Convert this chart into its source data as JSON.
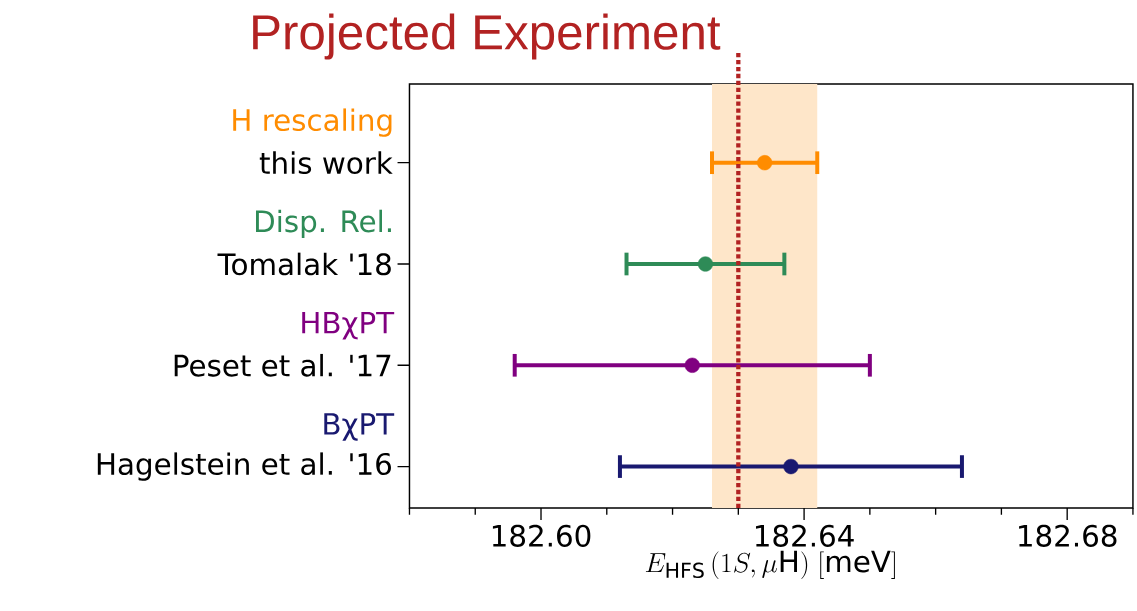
{
  "chart_data": {
    "type": "scatter",
    "orientation": "horizontal",
    "marker": "circle",
    "grid": false,
    "categories": [
      "this work",
      "Tomalak '18",
      "Peset et al. '17",
      "Hagelstein et al. '16"
    ],
    "series": [
      {
        "name": "H rescaling",
        "color": "#ff8c00",
        "values": [
          182.634,
          null,
          null,
          null
        ],
        "errors": [
          [
            182.626,
            182.642
          ],
          null,
          null,
          null
        ]
      },
      {
        "name": "Disp. Rel.",
        "color": "#2e8b57",
        "values": [
          null,
          182.625,
          null,
          null
        ],
        "errors": [
          null,
          [
            182.613,
            182.637
          ],
          null,
          null
        ]
      },
      {
        "name": "HBχPT",
        "color": "#800080",
        "values": [
          null,
          null,
          182.623,
          null
        ],
        "errors": [
          null,
          null,
          [
            182.596,
            182.65
          ],
          null
        ]
      },
      {
        "name": "BχPT",
        "color": "#191970",
        "values": [
          null,
          null,
          null,
          182.638
        ],
        "errors": [
          null,
          null,
          null,
          [
            182.612,
            182.664
          ]
        ]
      }
    ],
    "xlabel": "E_{\\mathrm{HFS}}\\,(1S,\\mu\\mathrm{H})\\;[\\mathrm{meV}]",
    "xlim": [
      182.58,
      182.69
    ],
    "xticks": [
      {
        "value": 182.58,
        "label": null
      },
      {
        "value": 182.59,
        "label": null
      },
      {
        "value": 182.6,
        "label": "182.60"
      },
      {
        "value": 182.61,
        "label": null
      },
      {
        "value": 182.62,
        "label": null
      },
      {
        "value": 182.63,
        "label": null
      },
      {
        "value": 182.64,
        "label": "182.64"
      },
      {
        "value": 182.65,
        "label": null
      },
      {
        "value": 182.66,
        "label": null
      },
      {
        "value": 182.67,
        "label": null
      },
      {
        "value": 182.68,
        "label": "182.68"
      },
      {
        "value": 182.69,
        "label": null
      }
    ],
    "ref_lines": [
      {
        "axis": "x",
        "value": 182.63,
        "label": "Projected Experiment",
        "color": "#b22222",
        "line_style": "dotted"
      }
    ],
    "bands": [
      {
        "axis": "x",
        "from": 182.626,
        "to": 182.642,
        "color": "#fee6c9"
      }
    ]
  }
}
